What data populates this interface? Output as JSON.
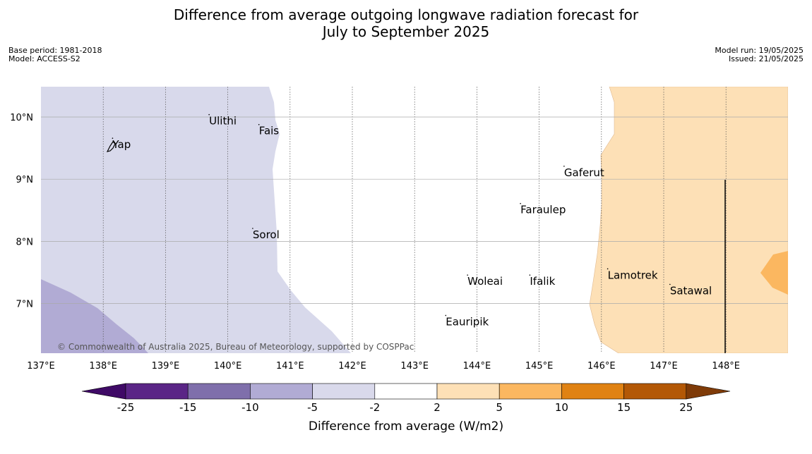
{
  "title_line1": "Difference from average outgoing longwave radiation forecast for",
  "title_line2": "July to September 2025",
  "meta_left": {
    "base_period": "Base period: 1981-2018",
    "model": "Model: ACCESS-S2"
  },
  "meta_right": {
    "model_run": "Model run: 19/05/2025",
    "issued": "Issued: 21/05/2025"
  },
  "map": {
    "lon_range": [
      137,
      149
    ],
    "lat_range": [
      6.2,
      10.5
    ],
    "lon_ticks": [
      "137°E",
      "138°E",
      "139°E",
      "140°E",
      "141°E",
      "142°E",
      "143°E",
      "144°E",
      "145°E",
      "146°E",
      "147°E",
      "148°E"
    ],
    "lat_ticks": [
      "10°N",
      "9°N",
      "8°N",
      "7°N"
    ],
    "places": [
      {
        "name": "Yap",
        "lon": 138.15,
        "lat": 9.5
      },
      {
        "name": "Ulithi",
        "lon": 139.7,
        "lat": 9.88
      },
      {
        "name": "Fais",
        "lon": 140.5,
        "lat": 9.72
      },
      {
        "name": "Sorol",
        "lon": 140.4,
        "lat": 8.05
      },
      {
        "name": "Gaferut",
        "lon": 145.4,
        "lat": 9.05
      },
      {
        "name": "Faraulep",
        "lon": 144.7,
        "lat": 8.45
      },
      {
        "name": "Woleai",
        "lon": 143.85,
        "lat": 7.3
      },
      {
        "name": "Ifalik",
        "lon": 144.85,
        "lat": 7.3
      },
      {
        "name": "Lamotrek",
        "lon": 146.1,
        "lat": 7.4
      },
      {
        "name": "Satawal",
        "lon": 147.1,
        "lat": 7.15
      },
      {
        "name": "Eauripik",
        "lon": 143.5,
        "lat": 6.65
      }
    ],
    "copyright": "© Commonwealth of Australia 2025, Bureau of Meteorology, supported by COSPPac"
  },
  "colorbar": {
    "ticks": [
      "-25",
      "-15",
      "-10",
      "-5",
      "-2",
      "2",
      "5",
      "10",
      "15",
      "25"
    ],
    "colors": [
      "#3f0a66",
      "#5a2586",
      "#7f6fab",
      "#b1abd4",
      "#d9d9eb",
      "#ffffff",
      "#fde0b6",
      "#fbb760",
      "#e08213",
      "#b35806",
      "#7f3b08"
    ],
    "label": "Difference from average (W/m2)"
  }
}
